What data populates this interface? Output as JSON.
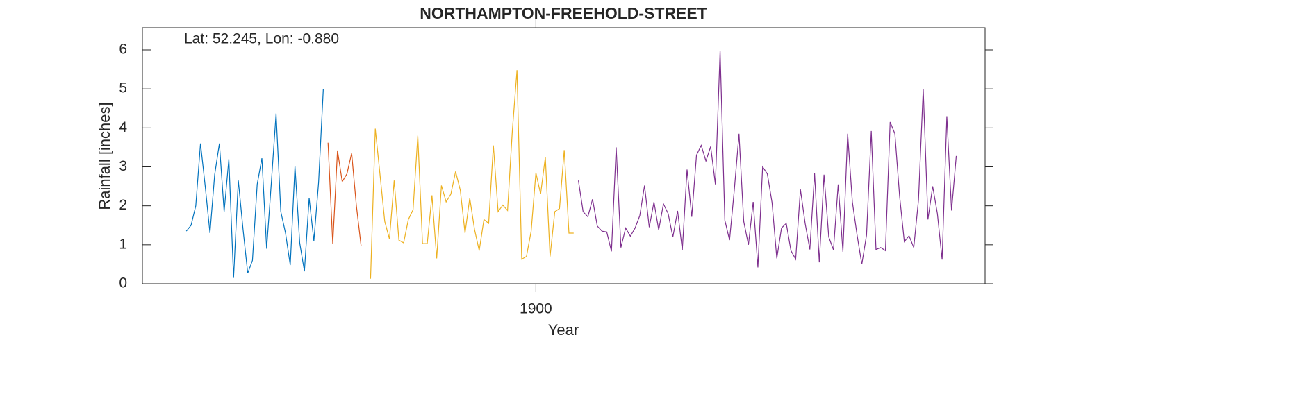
{
  "chart_data": {
    "type": "line",
    "title": "NORTHAMPTON-FREEHOLD-STREET",
    "annotation": "Lat: 52.245, Lon: -0.880",
    "xlabel": "Year",
    "ylabel": "Rainfall [inches]",
    "xlim": [
      1816.7,
      1995.1
    ],
    "xticks": [
      1900
    ],
    "ylim": [
      0,
      6.57
    ],
    "yticks": [
      0,
      1,
      2,
      3,
      4,
      5,
      6
    ],
    "series": [
      {
        "color": "#0072BD",
        "x": [
          1826,
          1827,
          1828,
          1829,
          1830,
          1831,
          1832,
          1833,
          1834,
          1835,
          1836,
          1837,
          1838,
          1839,
          1840,
          1841,
          1842,
          1843,
          1844,
          1845,
          1846,
          1847,
          1848,
          1849,
          1850,
          1851,
          1852,
          1853,
          1854,
          1855
        ],
        "values": [
          1.35,
          1.5,
          2.0,
          3.6,
          2.5,
          1.3,
          2.8,
          3.6,
          1.85,
          3.2,
          0.15,
          2.65,
          1.4,
          0.27,
          0.6,
          2.55,
          3.22,
          0.9,
          2.6,
          4.37,
          1.85,
          1.3,
          0.48,
          3.02,
          1.05,
          0.32,
          2.2,
          1.1,
          2.6,
          5.0
        ]
      },
      {
        "color": "#D95319",
        "x": [
          1856,
          1857,
          1858,
          1859,
          1860,
          1861,
          1862,
          1863
        ],
        "values": [
          3.62,
          1.02,
          3.42,
          2.62,
          2.82,
          3.35,
          2.0,
          0.97
        ]
      },
      {
        "color": "#EDB120",
        "x": [
          1865,
          1866,
          1867,
          1868,
          1869,
          1870,
          1871,
          1872,
          1873,
          1874,
          1875,
          1876,
          1877,
          1878,
          1879,
          1880,
          1881,
          1882,
          1883,
          1884,
          1885,
          1886,
          1887,
          1888,
          1889,
          1890,
          1891,
          1892,
          1893,
          1894,
          1895,
          1896,
          1897,
          1898,
          1899,
          1900,
          1901,
          1902,
          1903,
          1904,
          1905,
          1906,
          1907,
          1908
        ],
        "values": [
          0.13,
          3.98,
          2.8,
          1.6,
          1.15,
          2.65,
          1.12,
          1.05,
          1.65,
          1.9,
          3.8,
          1.03,
          1.03,
          2.27,
          0.65,
          2.52,
          2.1,
          2.3,
          2.88,
          2.4,
          1.3,
          2.2,
          1.4,
          0.85,
          1.65,
          1.55,
          3.55,
          1.85,
          2.02,
          1.88,
          3.9,
          5.48,
          0.63,
          0.7,
          1.35,
          2.85,
          2.3,
          3.25,
          0.7,
          1.85,
          1.93,
          3.43,
          1.3,
          1.3
        ]
      },
      {
        "color": "#7E2F8E",
        "x": [
          1909,
          1910,
          1911,
          1912,
          1913,
          1914,
          1915,
          1916,
          1917,
          1918,
          1919,
          1920,
          1921,
          1922,
          1923,
          1924,
          1925,
          1926,
          1927,
          1928,
          1929,
          1930,
          1931,
          1932,
          1933,
          1934,
          1935,
          1936,
          1937,
          1938,
          1939,
          1940,
          1941,
          1942,
          1943,
          1944,
          1945,
          1946,
          1947,
          1948,
          1949,
          1950,
          1951,
          1952,
          1953,
          1954,
          1955,
          1956,
          1957,
          1958,
          1959,
          1960,
          1961,
          1962,
          1963,
          1964,
          1965,
          1966,
          1967,
          1968,
          1969,
          1970,
          1971,
          1972,
          1973,
          1974,
          1975,
          1976,
          1977,
          1978,
          1979,
          1980,
          1981,
          1982,
          1983,
          1984,
          1985,
          1986,
          1987,
          1988,
          1989
        ],
        "values": [
          2.65,
          1.85,
          1.72,
          2.17,
          1.48,
          1.35,
          1.33,
          0.83,
          3.5,
          0.93,
          1.43,
          1.22,
          1.43,
          1.75,
          2.52,
          1.45,
          2.1,
          1.38,
          2.05,
          1.8,
          1.2,
          1.87,
          0.87,
          2.93,
          1.72,
          3.3,
          3.55,
          3.15,
          3.52,
          2.55,
          5.98,
          1.63,
          1.12,
          2.4,
          3.85,
          1.6,
          1.0,
          2.1,
          0.42,
          3.0,
          2.82,
          2.08,
          0.65,
          1.43,
          1.55,
          0.85,
          0.63,
          2.42,
          1.55,
          0.88,
          2.83,
          0.55,
          2.8,
          1.2,
          0.87,
          2.55,
          0.82,
          3.85,
          2.1,
          1.25,
          0.5,
          1.25,
          3.92,
          0.88,
          0.93,
          0.85,
          4.15,
          3.85,
          2.25,
          1.08,
          1.23,
          0.93,
          2.15,
          5.0,
          1.65,
          2.5,
          1.8,
          0.62,
          4.3,
          1.88,
          3.28
        ]
      }
    ]
  }
}
